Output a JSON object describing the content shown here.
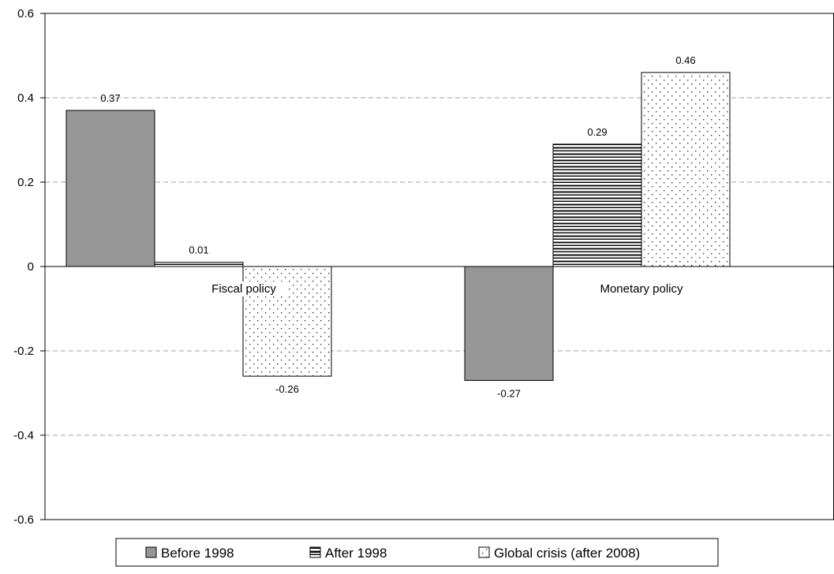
{
  "chart_data": {
    "type": "bar",
    "categories": [
      "Fiscal policy",
      "Monetary policy"
    ],
    "series": [
      {
        "name": "Before 1998",
        "values": [
          0.37,
          -0.27
        ],
        "labels": [
          "0.37",
          "-0.27"
        ],
        "pattern": "solid-gray",
        "fill": "#969696"
      },
      {
        "name": "After 1998",
        "values": [
          0.01,
          0.29
        ],
        "labels": [
          "0.01",
          "0.29"
        ],
        "pattern": "horizontal-lines",
        "fill": "#ffffff"
      },
      {
        "name": "Global crisis (after 2008)",
        "values": [
          -0.26,
          0.46
        ],
        "labels": [
          "-0.26",
          "0.46"
        ],
        "pattern": "dots",
        "fill": "#ffffff"
      }
    ],
    "title": "",
    "xlabel": "",
    "ylabel": "",
    "ylim": [
      -0.6,
      0.6
    ],
    "yticks": [
      0.6,
      0.4,
      0.2,
      0,
      -0.2,
      -0.4,
      -0.6
    ],
    "ytick_labels": [
      "0.6",
      "0.4",
      "0.2",
      "0",
      "-0.2",
      "-0.4",
      "-0.6"
    ],
    "grid": "horizontal-dashed",
    "legend_position": "bottom"
  }
}
